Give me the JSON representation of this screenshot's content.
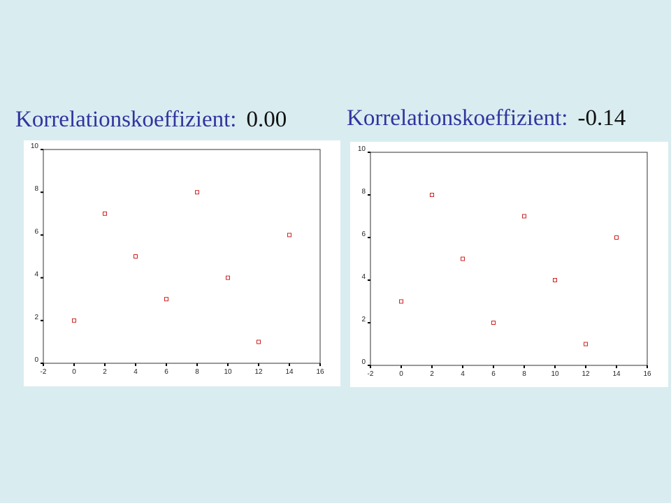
{
  "headings": [
    {
      "label": "Korrelationskoeffizient:",
      "value": "0.00"
    },
    {
      "label": "Korrelationskoeffizient:",
      "value": "-0.14"
    }
  ],
  "colors": {
    "background": "#d9edf0",
    "heading_label": "#3333a0",
    "heading_value": "#111111",
    "marker": "#cc2222",
    "axis": "#333333"
  },
  "chart_data": [
    {
      "type": "scatter",
      "title": "",
      "xlabel": "",
      "ylabel": "",
      "xlim": [
        -2,
        16
      ],
      "ylim": [
        0,
        10
      ],
      "x_ticks": [
        -2,
        0,
        2,
        4,
        6,
        8,
        10,
        12,
        14,
        16
      ],
      "y_ticks": [
        0,
        2,
        4,
        6,
        8,
        10
      ],
      "grid": false,
      "marker": "hollow-square",
      "x": [
        0,
        2,
        4,
        6,
        8,
        10,
        12,
        14
      ],
      "y": [
        2,
        7,
        5,
        3,
        8,
        4,
        1,
        6
      ]
    },
    {
      "type": "scatter",
      "title": "",
      "xlabel": "",
      "ylabel": "",
      "xlim": [
        -2,
        16
      ],
      "ylim": [
        0,
        10
      ],
      "x_ticks": [
        -2,
        0,
        2,
        4,
        6,
        8,
        10,
        12,
        14,
        16
      ],
      "y_ticks": [
        0,
        2,
        4,
        6,
        8,
        10
      ],
      "grid": false,
      "marker": "hollow-square",
      "x": [
        0,
        2,
        4,
        6,
        8,
        10,
        12,
        14
      ],
      "y": [
        3,
        8,
        5,
        2,
        7,
        4,
        1,
        6
      ]
    }
  ]
}
